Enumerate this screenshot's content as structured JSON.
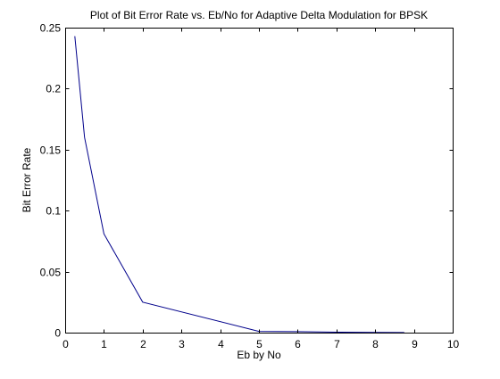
{
  "chart_data": {
    "type": "line",
    "title": "Plot of Bit Error Rate vs. Eb/No for Adaptive Delta Modulation for BPSK",
    "xlabel": "Eb by No",
    "ylabel": "Bit Error Rate",
    "xlim": [
      0,
      10
    ],
    "ylim": [
      0,
      0.25
    ],
    "x_ticks": [
      0,
      1,
      2,
      3,
      4,
      5,
      6,
      7,
      8,
      9,
      10
    ],
    "x_tick_labels": [
      "0",
      "1",
      "2",
      "3",
      "4",
      "5",
      "6",
      "7",
      "8",
      "9",
      "10"
    ],
    "y_ticks": [
      0,
      0.05,
      0.1,
      0.15,
      0.2,
      0.25
    ],
    "y_tick_labels": [
      "0",
      "0.05",
      "0.1",
      "0.15",
      "0.2",
      "0.25"
    ],
    "grid": false,
    "series": [
      {
        "color": "#00008b",
        "x": [
          0.25,
          0.5,
          1,
          2,
          5,
          6,
          7,
          8,
          8.75
        ],
        "y": [
          0.243,
          0.16,
          0.081,
          0.025,
          0.001,
          0.0008,
          0.0004,
          0.0002,
          0.0001
        ]
      }
    ]
  }
}
